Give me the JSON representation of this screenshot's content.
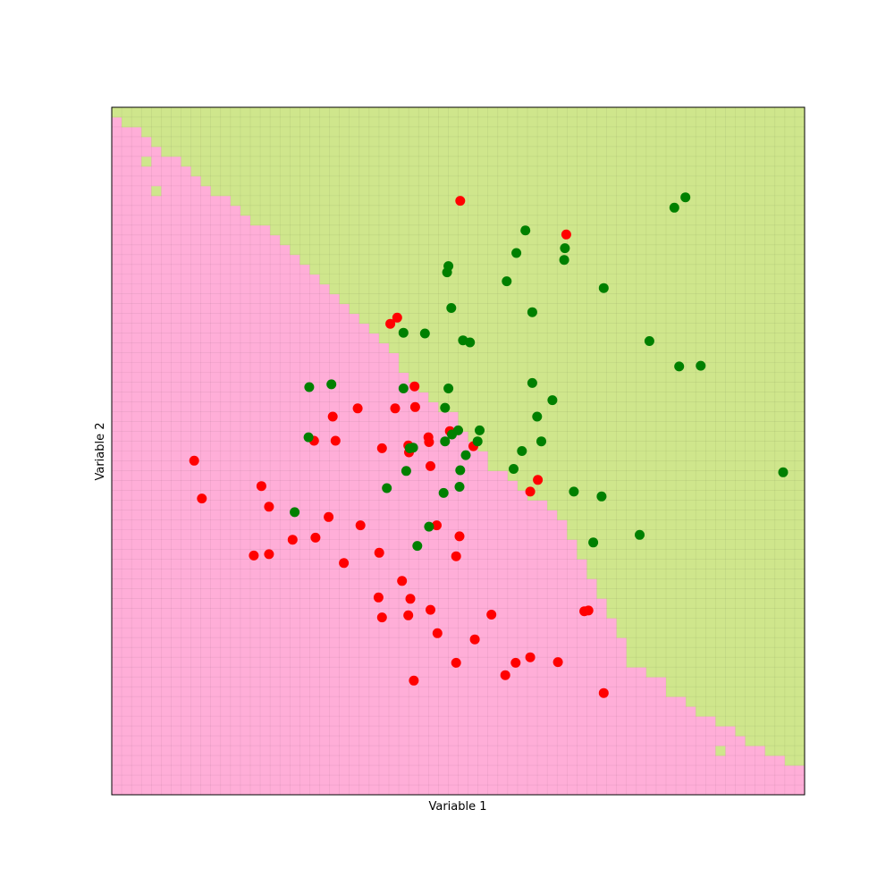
{
  "chart_data": {
    "type": "scatter",
    "xlabel": "Variable 1",
    "ylabel": "Variable 2",
    "xlim": [
      0,
      1
    ],
    "ylim": [
      0,
      1
    ],
    "grid_cells": 70,
    "ticks": "none",
    "colors": {
      "region_class_0": "#ffaed8",
      "region_class_0_grid": "#f084bc",
      "region_class_1": "#cfe68c",
      "region_class_1_grid": "#a8d060",
      "point_class_0": "#ff0000",
      "point_class_1": "#008000"
    },
    "decision_boundary": {
      "x": [
        0.0,
        0.05,
        0.1,
        0.15,
        0.2,
        0.25,
        0.3,
        0.35,
        0.4,
        0.45,
        0.5,
        0.55,
        0.6,
        0.65,
        0.7,
        0.75,
        0.8,
        0.85,
        0.9,
        0.95,
        1.0
      ],
      "y": [
        0.985,
        0.96,
        0.915,
        0.875,
        0.84,
        0.8,
        0.755,
        0.705,
        0.645,
        0.585,
        0.545,
        0.475,
        0.44,
        0.405,
        0.305,
        0.19,
        0.165,
        0.12,
        0.09,
        0.06,
        0.04
      ]
    },
    "region_islands": [
      {
        "x": 0.05,
        "y": 0.915,
        "class": 1
      },
      {
        "x": 0.065,
        "y": 0.885,
        "class": 1
      },
      {
        "x": 0.45,
        "y": 0.53,
        "class": 0
      },
      {
        "x": 0.805,
        "y": 0.155,
        "class": 1
      },
      {
        "x": 0.875,
        "y": 0.07,
        "class": 1
      }
    ],
    "series": [
      {
        "class": 0,
        "color": "#ff0000",
        "x": [
          0.503,
          0.656,
          0.412,
          0.402,
          0.437,
          0.319,
          0.292,
          0.355,
          0.409,
          0.438,
          0.457,
          0.46,
          0.488,
          0.429,
          0.428,
          0.458,
          0.522,
          0.39,
          0.604,
          0.323,
          0.119,
          0.13,
          0.216,
          0.227,
          0.313,
          0.469,
          0.261,
          0.294,
          0.227,
          0.359,
          0.205,
          0.335,
          0.386,
          0.502,
          0.419,
          0.46,
          0.431,
          0.385,
          0.548,
          0.615,
          0.688,
          0.682,
          0.497,
          0.39,
          0.428,
          0.47,
          0.524,
          0.583,
          0.497,
          0.604,
          0.568,
          0.644,
          0.71,
          0.436
        ],
        "y": [
          0.864,
          0.815,
          0.694,
          0.685,
          0.594,
          0.55,
          0.515,
          0.562,
          0.562,
          0.564,
          0.52,
          0.478,
          0.529,
          0.498,
          0.508,
          0.513,
          0.507,
          0.504,
          0.441,
          0.515,
          0.486,
          0.431,
          0.449,
          0.419,
          0.404,
          0.392,
          0.371,
          0.374,
          0.35,
          0.392,
          0.348,
          0.337,
          0.352,
          0.376,
          0.311,
          0.269,
          0.285,
          0.287,
          0.262,
          0.458,
          0.268,
          0.267,
          0.347,
          0.258,
          0.261,
          0.235,
          0.226,
          0.192,
          0.192,
          0.2,
          0.174,
          0.193,
          0.148,
          0.166
        ]
      },
      {
        "class": 1,
        "color": "#008000",
        "x": [
          0.828,
          0.812,
          0.597,
          0.654,
          0.653,
          0.584,
          0.486,
          0.484,
          0.57,
          0.71,
          0.49,
          0.607,
          0.421,
          0.452,
          0.507,
          0.517,
          0.776,
          0.85,
          0.819,
          0.607,
          0.486,
          0.317,
          0.285,
          0.421,
          0.531,
          0.491,
          0.62,
          0.5,
          0.528,
          0.481,
          0.592,
          0.58,
          0.667,
          0.503,
          0.502,
          0.43,
          0.435,
          0.284,
          0.481,
          0.264,
          0.636,
          0.425,
          0.707,
          0.969,
          0.695,
          0.441,
          0.762,
          0.458,
          0.614,
          0.397,
          0.511,
          0.479
        ],
        "y": [
          0.869,
          0.854,
          0.821,
          0.795,
          0.778,
          0.788,
          0.769,
          0.76,
          0.747,
          0.737,
          0.708,
          0.702,
          0.672,
          0.671,
          0.661,
          0.658,
          0.66,
          0.624,
          0.623,
          0.599,
          0.591,
          0.597,
          0.593,
          0.591,
          0.53,
          0.524,
          0.514,
          0.53,
          0.514,
          0.514,
          0.5,
          0.474,
          0.441,
          0.472,
          0.448,
          0.504,
          0.505,
          0.52,
          0.563,
          0.411,
          0.574,
          0.471,
          0.434,
          0.469,
          0.367,
          0.362,
          0.378,
          0.39,
          0.55,
          0.446,
          0.494,
          0.439
        ]
      }
    ]
  }
}
